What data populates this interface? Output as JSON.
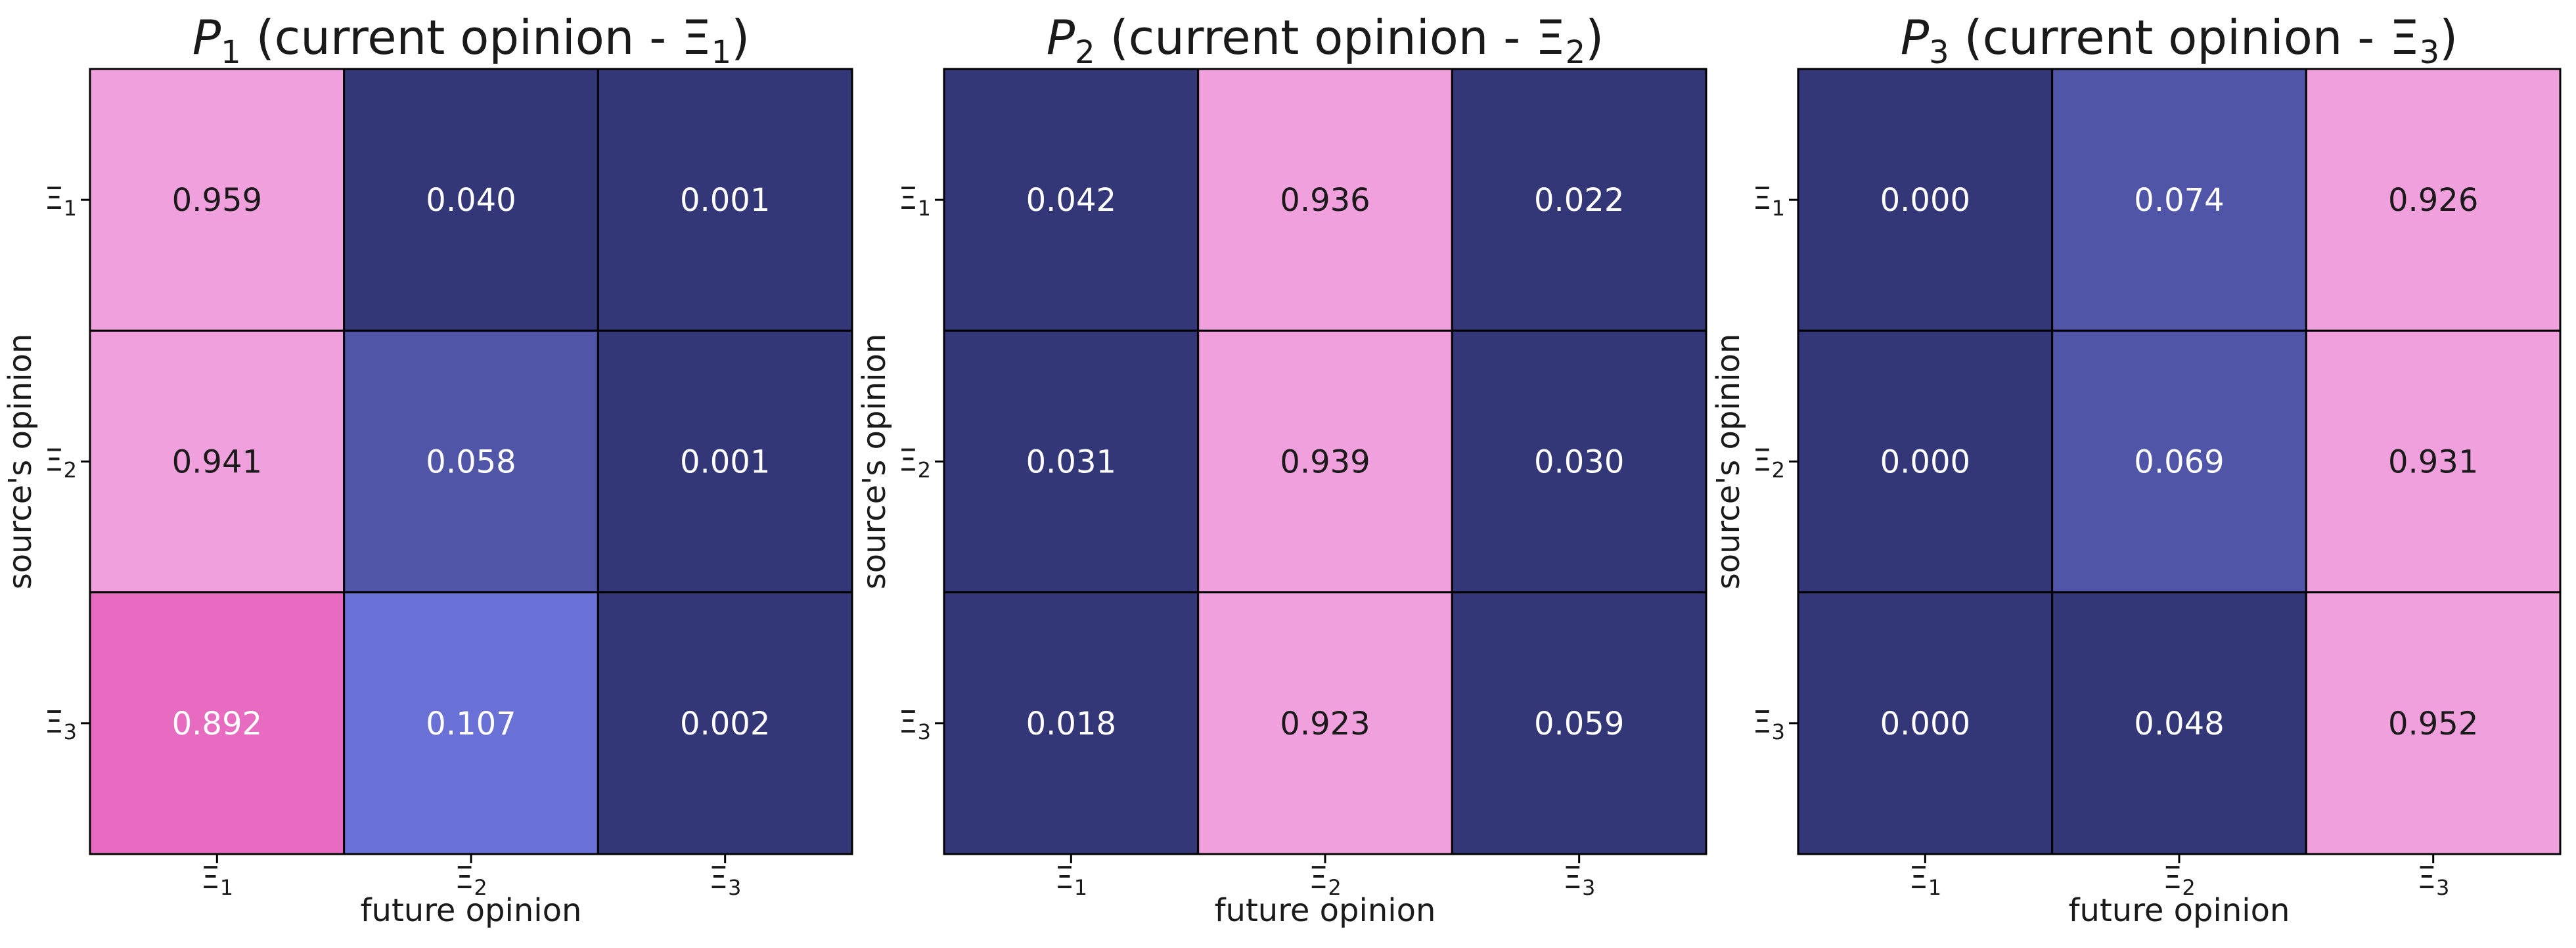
{
  "chart_data": [
    {
      "type": "heatmap",
      "title_var": "P",
      "title_sub": "1",
      "title_rest": " (current opinion - Ξ",
      "title_end": ")",
      "title_end_sub": "1",
      "xlabel": "future opinion",
      "ylabel": "source's opinion",
      "x_ticks": [
        {
          "base": "Ξ",
          "sub": "1"
        },
        {
          "base": "Ξ",
          "sub": "2"
        },
        {
          "base": "Ξ",
          "sub": "3"
        }
      ],
      "y_ticks": [
        {
          "base": "Ξ",
          "sub": "1"
        },
        {
          "base": "Ξ",
          "sub": "2"
        },
        {
          "base": "Ξ",
          "sub": "3"
        }
      ],
      "values": [
        [
          0.959,
          0.04,
          0.001
        ],
        [
          0.941,
          0.058,
          0.001
        ],
        [
          0.892,
          0.107,
          0.002
        ]
      ],
      "labels": [
        [
          "0.959",
          "0.040",
          "0.001"
        ],
        [
          "0.941",
          "0.058",
          "0.001"
        ],
        [
          "0.892",
          "0.107",
          "0.002"
        ]
      ],
      "colors": [
        [
          "#f0a0dc",
          "#333778",
          "#333778"
        ],
        [
          "#f0a0dc",
          "#5055a8",
          "#333778"
        ],
        [
          "#e86bc2",
          "#6a71d6",
          "#333778"
        ]
      ],
      "label_colors": [
        [
          "#1a1a1a",
          "#ffffff",
          "#ffffff"
        ],
        [
          "#1a1a1a",
          "#ffffff",
          "#ffffff"
        ],
        [
          "#ffffff",
          "#ffffff",
          "#ffffff"
        ]
      ]
    },
    {
      "type": "heatmap",
      "title_var": "P",
      "title_sub": "2",
      "title_rest": " (current opinion - Ξ",
      "title_end": ")",
      "title_end_sub": "2",
      "xlabel": "future opinion",
      "ylabel": "source's opinion",
      "x_ticks": [
        {
          "base": "Ξ",
          "sub": "1"
        },
        {
          "base": "Ξ",
          "sub": "2"
        },
        {
          "base": "Ξ",
          "sub": "3"
        }
      ],
      "y_ticks": [
        {
          "base": "Ξ",
          "sub": "1"
        },
        {
          "base": "Ξ",
          "sub": "2"
        },
        {
          "base": "Ξ",
          "sub": "3"
        }
      ],
      "values": [
        [
          0.042,
          0.936,
          0.022
        ],
        [
          0.031,
          0.939,
          0.03
        ],
        [
          0.018,
          0.923,
          0.059
        ]
      ],
      "labels": [
        [
          "0.042",
          "0.936",
          "0.022"
        ],
        [
          "0.031",
          "0.939",
          "0.030"
        ],
        [
          "0.018",
          "0.923",
          "0.059"
        ]
      ],
      "colors": [
        [
          "#333778",
          "#f0a0dc",
          "#333778"
        ],
        [
          "#333778",
          "#f0a0dc",
          "#333778"
        ],
        [
          "#333778",
          "#f0a0dc",
          "#333778"
        ]
      ],
      "label_colors": [
        [
          "#ffffff",
          "#1a1a1a",
          "#ffffff"
        ],
        [
          "#ffffff",
          "#1a1a1a",
          "#ffffff"
        ],
        [
          "#ffffff",
          "#1a1a1a",
          "#ffffff"
        ]
      ]
    },
    {
      "type": "heatmap",
      "title_var": "P",
      "title_sub": "3",
      "title_rest": " (current opinion - Ξ",
      "title_end": ")",
      "title_end_sub": "3",
      "xlabel": "future opinion",
      "ylabel": "source's opinion",
      "x_ticks": [
        {
          "base": "Ξ",
          "sub": "1"
        },
        {
          "base": "Ξ",
          "sub": "2"
        },
        {
          "base": "Ξ",
          "sub": "3"
        }
      ],
      "y_ticks": [
        {
          "base": "Ξ",
          "sub": "1"
        },
        {
          "base": "Ξ",
          "sub": "2"
        },
        {
          "base": "Ξ",
          "sub": "3"
        }
      ],
      "values": [
        [
          0.0,
          0.074,
          0.926
        ],
        [
          0.0,
          0.069,
          0.931
        ],
        [
          0.0,
          0.048,
          0.952
        ]
      ],
      "labels": [
        [
          "0.000",
          "0.074",
          "0.926"
        ],
        [
          "0.000",
          "0.069",
          "0.931"
        ],
        [
          "0.000",
          "0.048",
          "0.952"
        ]
      ],
      "colors": [
        [
          "#333778",
          "#5055a8",
          "#f0a0dc"
        ],
        [
          "#333778",
          "#5055a8",
          "#f0a0dc"
        ],
        [
          "#333778",
          "#333778",
          "#f0a0dc"
        ]
      ],
      "label_colors": [
        [
          "#ffffff",
          "#ffffff",
          "#1a1a1a"
        ],
        [
          "#ffffff",
          "#ffffff",
          "#1a1a1a"
        ],
        [
          "#ffffff",
          "#ffffff",
          "#1a1a1a"
        ]
      ]
    }
  ]
}
